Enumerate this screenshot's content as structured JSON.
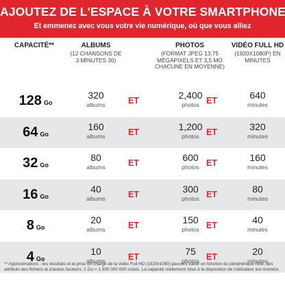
{
  "banner": {
    "title": "AJOUTEZ DE L'ESPACE À VOTRE SMARTPHONE",
    "subtitle": "Et emmenez avec vous votre vie numérique, où que vous alliez"
  },
  "headers": {
    "capacity": "CAPACITÉ**",
    "albums": "ALBUMS",
    "albums_sub": "(12 CHANSONS DE 3 MINUTES 30)",
    "photos": "PHOTOS",
    "photos_sub": "(FORMAT JPEG 13,75 MÉGAPIXELS ET 3,5 MO CHACUNE EN MOYENNE)",
    "video": "VIDÉO FULL HD",
    "video_sub": "(1920X1080P) EN MINUTES"
  },
  "et_label": "ET",
  "rows": [
    {
      "capacity": "128",
      "unit": "Go",
      "albums": "320",
      "albums_unit": "albums",
      "photos": "2,400",
      "photos_unit": "photos",
      "minutes": "640",
      "minutes_unit": "minutes"
    },
    {
      "capacity": "64",
      "unit": "Go",
      "albums": "160",
      "albums_unit": "albums",
      "photos": "1,200",
      "photos_unit": "photos",
      "minutes": "320",
      "minutes_unit": "minutes"
    },
    {
      "capacity": "32",
      "unit": "Go",
      "albums": "80",
      "albums_unit": "albums",
      "photos": "600",
      "photos_unit": "photos",
      "minutes": "160",
      "minutes_unit": "minutes"
    },
    {
      "capacity": "16",
      "unit": "Go",
      "albums": "40",
      "albums_unit": "albums",
      "photos": "300",
      "photos_unit": "photos",
      "minutes": "80",
      "minutes_unit": "minutes"
    },
    {
      "capacity": "8",
      "unit": "Go",
      "albums": "20",
      "albums_unit": "albums",
      "photos": "150",
      "photos_unit": "photos",
      "minutes": "40",
      "minutes_unit": "minutes"
    },
    {
      "capacity": "4",
      "unit": "Go",
      "albums": "10",
      "albums_unit": "albums",
      "photos": "75",
      "photos_unit": "photos",
      "minutes": "20",
      "minutes_unit": "minutes"
    }
  ],
  "footnote": "** Approximations : les résultats et la prise en charge de la vidéo Full HD (1920x1080) peuvent varier en fonction du périphérique hôte, des attributs des fichiers et d'autres facteurs. 1 Go = 1 000 000 000 octets. La capacité réellement mise à la disposition de l'utilisateur est moindre."
}
